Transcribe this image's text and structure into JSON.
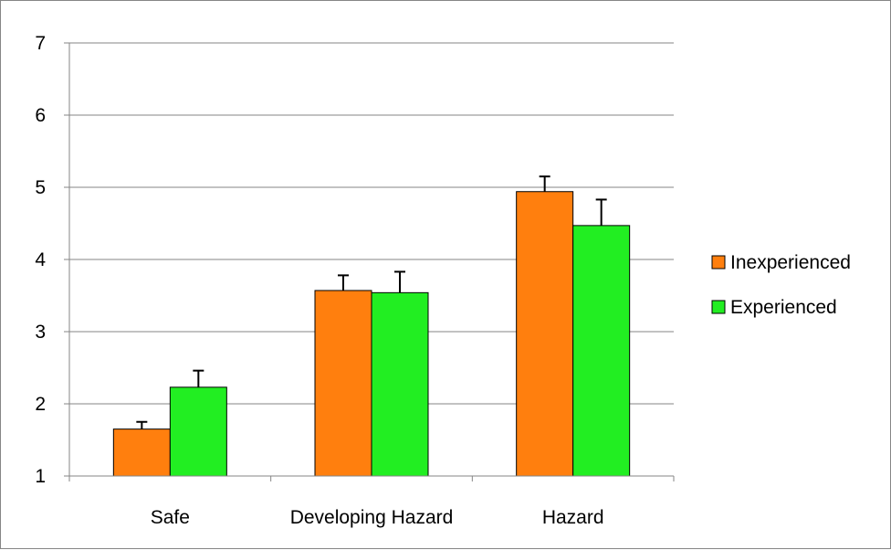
{
  "chart_data": {
    "type": "bar",
    "categories": [
      "Safe",
      "Developing Hazard",
      "Hazard"
    ],
    "series": [
      {
        "name": "Inexperienced",
        "color": "#FF7F0E",
        "values": [
          1.65,
          3.57,
          4.94
        ],
        "error": [
          0.1,
          0.21,
          0.21
        ]
      },
      {
        "name": "Experienced",
        "color": "#22EE22",
        "values": [
          2.23,
          3.54,
          4.47
        ],
        "error": [
          0.23,
          0.29,
          0.36
        ]
      }
    ],
    "ylim": [
      1,
      7
    ],
    "yticks": [
      1,
      2,
      3,
      4,
      5,
      6,
      7
    ],
    "grid": true,
    "legend_position": "right",
    "title": "",
    "xlabel": "",
    "ylabel": ""
  }
}
